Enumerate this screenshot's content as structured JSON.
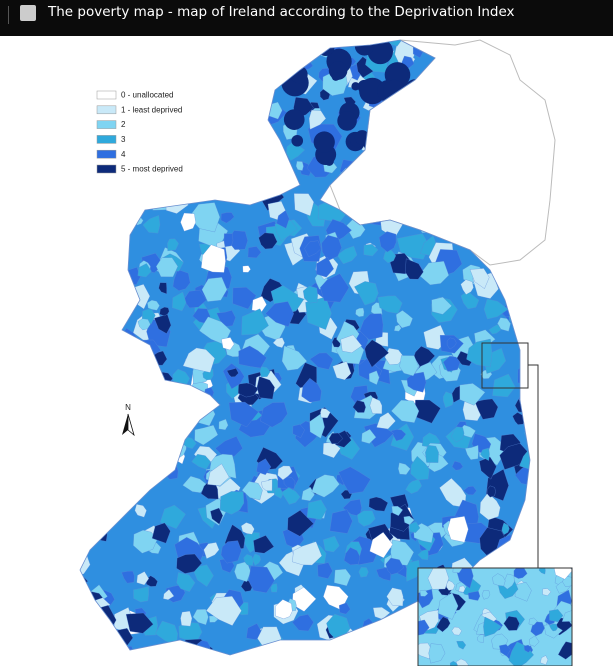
{
  "header": {
    "title": "The poverty map - map of Ireland according to the Deprivation Index"
  },
  "legend": {
    "items": [
      "0 - unallocated",
      "1 - least deprived",
      "2",
      "3",
      "4",
      "5 - most deprived"
    ]
  },
  "compass": {
    "label": "N"
  }
}
